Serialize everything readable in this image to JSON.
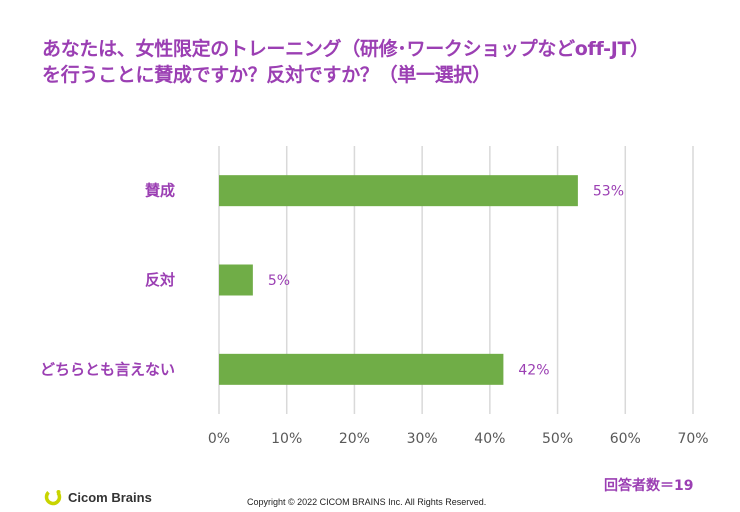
{
  "colors": {
    "accent": "#9b3fb3",
    "bar": "#70ad47",
    "grid": "#d9d9d9",
    "tick": "#595959"
  },
  "title_lines": [
    "あなたは、女性限定のトレーニング（研修･ワークショップなどoff-JT）",
    "を行うことに賛成ですか？反対ですか？（単一選択）"
  ],
  "chart_data": {
    "type": "bar",
    "orientation": "horizontal",
    "categories": [
      "賛成",
      "反対",
      "どちらとも言えない"
    ],
    "values": [
      53,
      5,
      42
    ],
    "value_labels": [
      "53%",
      "5%",
      "42%"
    ],
    "xlim": [
      0,
      70
    ],
    "xticks": [
      0,
      10,
      20,
      30,
      40,
      50,
      60,
      70
    ],
    "xtick_labels": [
      "0%",
      "10%",
      "20%",
      "30%",
      "40%",
      "50%",
      "60%",
      "70%"
    ],
    "grid": true,
    "legend": "none"
  },
  "respondents": "回答者数＝19",
  "logo_text": "Cicom Brains",
  "logo_icon": "c-logo-icon",
  "copyright": "Copyright © 2022 CICOM BRAINS Inc. All Rights Reserved."
}
